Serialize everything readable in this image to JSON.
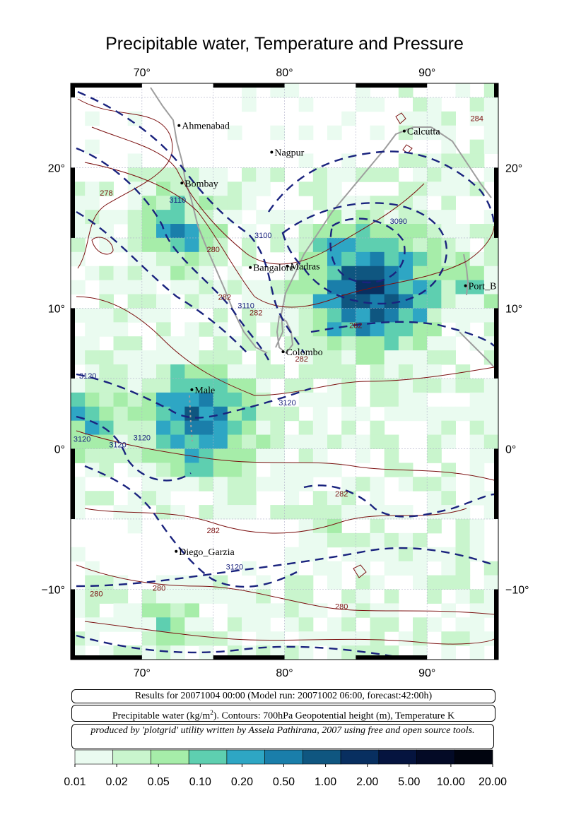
{
  "title": "Precipitable water, Temperature and Pressure",
  "map": {
    "lon_range": [
      65,
      95
    ],
    "lat_range": [
      -15,
      26
    ],
    "lon_ticks": [
      {
        "label": "70°",
        "value": 70
      },
      {
        "label": "80°",
        "value": 80
      },
      {
        "label": "90°",
        "value": 90
      }
    ],
    "lat_ticks": [
      {
        "label": "20°",
        "value": 20
      },
      {
        "label": "10°",
        "value": 10
      },
      {
        "label": "0°",
        "value": 0
      },
      {
        "label": "−10°",
        "value": -10
      }
    ],
    "cities": [
      {
        "name": "Ahmenabad",
        "lon": 72.6,
        "lat": 23.0
      },
      {
        "name": "Nagpur",
        "lon": 79.1,
        "lat": 21.1
      },
      {
        "name": "Calcutta",
        "lon": 88.4,
        "lat": 22.6
      },
      {
        "name": "Bombay",
        "lon": 72.8,
        "lat": 18.9
      },
      {
        "name": "Bangalore",
        "lon": 77.6,
        "lat": 12.9
      },
      {
        "name": "Madras",
        "lon": 80.2,
        "lat": 13.0
      },
      {
        "name": "Port_B",
        "lon": 92.7,
        "lat": 11.6
      },
      {
        "name": "Colombo",
        "lon": 79.9,
        "lat": 6.9
      },
      {
        "name": "Male",
        "lon": 73.5,
        "lat": 4.2
      },
      {
        "name": "Diego_Garzia",
        "lon": 72.4,
        "lat": -7.3
      }
    ],
    "contour_labels": [
      {
        "text": "3110",
        "lon": 72.5,
        "lat": 17.5,
        "color": "#1a237e"
      },
      {
        "text": "3100",
        "lon": 78.5,
        "lat": 15.0,
        "color": "#1a237e"
      },
      {
        "text": "3090",
        "lon": 88.0,
        "lat": 16.0,
        "color": "#1a237e"
      },
      {
        "text": "3110",
        "lon": 77.3,
        "lat": 10.0,
        "color": "#1a237e"
      },
      {
        "text": "3120",
        "lon": 66.2,
        "lat": 5.0,
        "color": "#1a237e"
      },
      {
        "text": "3120",
        "lon": 80.2,
        "lat": 3.1,
        "color": "#1a237e"
      },
      {
        "text": "3120",
        "lon": 65.8,
        "lat": 0.5,
        "color": "#1a237e"
      },
      {
        "text": "3120",
        "lon": 68.3,
        "lat": 0.1,
        "color": "#1a237e"
      },
      {
        "text": "3120",
        "lon": 70.0,
        "lat": 0.6,
        "color": "#1a237e"
      },
      {
        "text": "3120",
        "lon": 76.5,
        "lat": -8.6,
        "color": "#1a237e"
      },
      {
        "text": "278",
        "lon": 67.5,
        "lat": 18.0,
        "color": "#7b1010"
      },
      {
        "text": "280",
        "lon": 75.0,
        "lat": 14.0,
        "color": "#7b1010"
      },
      {
        "text": "282",
        "lon": 75.8,
        "lat": 10.6,
        "color": "#7b1010"
      },
      {
        "text": "282",
        "lon": 78.0,
        "lat": 9.5,
        "color": "#7b1010"
      },
      {
        "text": "282",
        "lon": 85.0,
        "lat": 8.6,
        "color": "#7b1010"
      },
      {
        "text": "282",
        "lon": 81.2,
        "lat": 6.2,
        "color": "#7b1010"
      },
      {
        "text": "284",
        "lon": 93.5,
        "lat": 23.3,
        "color": "#7b1010"
      },
      {
        "text": "282",
        "lon": 84.0,
        "lat": -3.4,
        "color": "#7b1010"
      },
      {
        "text": "282",
        "lon": 75.0,
        "lat": -6.0,
        "color": "#7b1010"
      },
      {
        "text": "280",
        "lon": 71.2,
        "lat": -10.1,
        "color": "#7b1010"
      },
      {
        "text": "280",
        "lon": 66.8,
        "lat": -10.5,
        "color": "#7b1010"
      },
      {
        "text": "280",
        "lon": 84.0,
        "lat": -11.4,
        "color": "#7b1010"
      }
    ],
    "colors": {
      "land_outline": "#9e9e9e",
      "pressure_contour": "#1a237e",
      "temp_contour": "#7b1010",
      "grid": "#b0b0c8"
    }
  },
  "info": {
    "results_line": "Results for 20071004 00:00 (Model run: 20071002 06:00, forecast:42:00h)",
    "variables_line_a": "Precipitable water (kg/m",
    "variables_line_sup": "2",
    "variables_line_b": ").  Contours: 700hPa Geopotential height (m), Temperature K",
    "credit_line": "produced by 'plotgrid' utility written by Assela Pathirana, 2007 using free and open source tools."
  },
  "colorbar": {
    "labels": [
      "0.01",
      "0.02",
      "0.05",
      "0.10",
      "0.20",
      "0.50",
      "1.00",
      "2.00",
      "5.00",
      "10.00",
      "20.00"
    ],
    "colors": [
      "#eafbf0",
      "#c9f5cd",
      "#a6eda9",
      "#5ecfb0",
      "#2ea6c4",
      "#1a7eaa",
      "#0f5680",
      "#082f60",
      "#05143f",
      "#030a26",
      "#01040f"
    ]
  }
}
